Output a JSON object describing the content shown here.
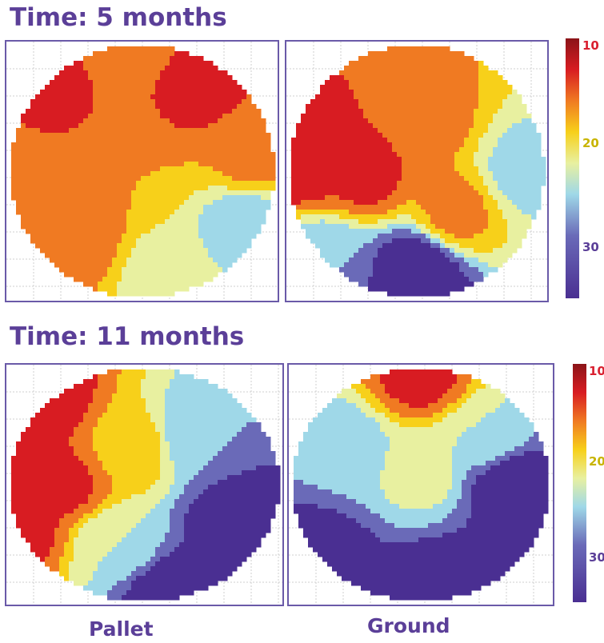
{
  "chart_data": {
    "type": "heatmap",
    "rows": [
      {
        "title": "Time: 5 months",
        "colorbar": {
          "range": [
            10,
            35
          ],
          "ticks": [
            10,
            20,
            30
          ],
          "reversed": true
        },
        "panels": [
          {
            "blobs": [
              {
                "x": 0.45,
                "y": 0.5,
                "v": 16
              },
              {
                "x": 0.15,
                "y": 0.2,
                "v": 12
              },
              {
                "x": 0.7,
                "y": 0.18,
                "v": 12
              },
              {
                "x": 0.25,
                "y": 0.75,
                "v": 14
              },
              {
                "x": 0.9,
                "y": 0.45,
                "v": 15
              },
              {
                "x": 0.88,
                "y": 0.7,
                "v": 24
              },
              {
                "x": 0.6,
                "y": 0.9,
                "v": 21
              },
              {
                "x": 0.05,
                "y": 0.5,
                "v": 15
              },
              {
                "x": 0.45,
                "y": 0.05,
                "v": 14
              }
            ]
          },
          {
            "blobs": [
              {
                "x": 0.3,
                "y": 0.5,
                "v": 12
              },
              {
                "x": 0.05,
                "y": 0.45,
                "v": 10
              },
              {
                "x": 0.55,
                "y": 0.3,
                "v": 15
              },
              {
                "x": 0.5,
                "y": 0.9,
                "v": 34
              },
              {
                "x": 0.9,
                "y": 0.5,
                "v": 23
              },
              {
                "x": 0.65,
                "y": 0.65,
                "v": 15
              },
              {
                "x": 0.15,
                "y": 0.85,
                "v": 25
              }
            ]
          }
        ]
      },
      {
        "title": "Time: 11 months",
        "colorbar": {
          "range": [
            10,
            35
          ],
          "ticks": [
            10,
            20,
            30
          ],
          "reversed": true
        },
        "panels": [
          {
            "blobs": [
              {
                "x": 0.1,
                "y": 0.15,
                "v": 10
              },
              {
                "x": 0.2,
                "y": 0.5,
                "v": 12
              },
              {
                "x": 0.45,
                "y": 0.35,
                "v": 17
              },
              {
                "x": 0.7,
                "y": 0.3,
                "v": 25
              },
              {
                "x": 0.85,
                "y": 0.65,
                "v": 33
              },
              {
                "x": 0.6,
                "y": 0.95,
                "v": 33
              },
              {
                "x": 0.4,
                "y": 0.75,
                "v": 22
              },
              {
                "x": 0.05,
                "y": 0.7,
                "v": 12
              }
            ]
          },
          {
            "blobs": [
              {
                "x": 0.5,
                "y": 0.05,
                "v": 12
              },
              {
                "x": 0.5,
                "y": 0.45,
                "v": 21
              },
              {
                "x": 0.2,
                "y": 0.35,
                "v": 24
              },
              {
                "x": 0.1,
                "y": 0.8,
                "v": 32
              },
              {
                "x": 0.85,
                "y": 0.5,
                "v": 33
              },
              {
                "x": 0.6,
                "y": 0.95,
                "v": 34
              },
              {
                "x": 0.75,
                "y": 0.3,
                "v": 22
              }
            ]
          }
        ]
      }
    ],
    "column_labels": [
      "Pallet",
      "Ground"
    ]
  }
}
